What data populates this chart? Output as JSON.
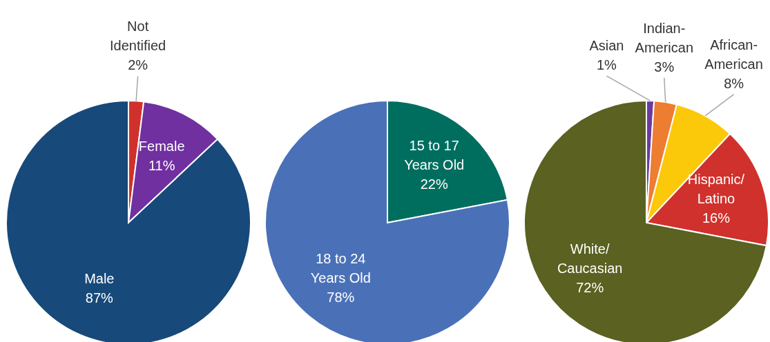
{
  "chart_data": [
    {
      "type": "pie",
      "categories": [
        "Not Identified",
        "Female",
        "Male"
      ],
      "values": [
        2,
        11,
        87
      ],
      "colors": [
        "#d0312d",
        "#7030a0",
        "#17497a"
      ],
      "value_labels": [
        "2%",
        "11%",
        "87%"
      ]
    },
    {
      "type": "pie",
      "categories": [
        "15 to 17 Years Old",
        "18 to 24 Years Old"
      ],
      "values": [
        22,
        78
      ],
      "colors": [
        "#006e5f",
        "#4a71b8"
      ],
      "value_labels": [
        "22%",
        "78%"
      ]
    },
    {
      "type": "pie",
      "categories": [
        "Asian",
        "Indian-American",
        "African-American",
        "Hispanic/Latino",
        "White/Caucasian"
      ],
      "values": [
        1,
        3,
        8,
        16,
        72
      ],
      "colors": [
        "#6a3aa0",
        "#ed7d31",
        "#fcc80a",
        "#d0312d",
        "#5a6121"
      ],
      "value_labels": [
        "1%",
        "3%",
        "8%",
        "16%",
        "72%"
      ]
    }
  ]
}
